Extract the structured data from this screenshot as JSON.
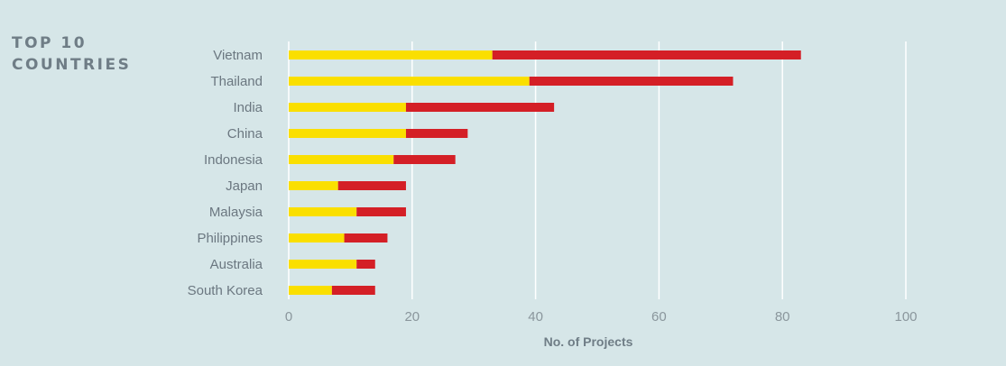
{
  "title": {
    "line1": "TOP 10",
    "line2": "COUNTRIES"
  },
  "colors": {
    "background": "#d6e6e8",
    "segment1": "#fadf00",
    "segment2": "#d41f26",
    "grid": "#ffffff"
  },
  "chart_data": {
    "type": "bar",
    "orientation": "horizontal",
    "stacked": true,
    "title": "TOP 10 COUNTRIES",
    "xlabel": "No. of Projects",
    "ylabel": "",
    "xlim": [
      0,
      100
    ],
    "xticks": [
      0,
      20,
      40,
      60,
      80,
      100
    ],
    "grid": "vertical",
    "categories": [
      "Vietnam",
      "Thailand",
      "India",
      "China",
      "Indonesia",
      "Japan",
      "Malaysia",
      "Philippines",
      "Australia",
      "South Korea"
    ],
    "series": [
      {
        "color": "#fadf00",
        "values": [
          33,
          39,
          19,
          19,
          17,
          8,
          11,
          9,
          11,
          7
        ]
      },
      {
        "color": "#d41f26",
        "values": [
          50,
          33,
          24,
          10,
          10,
          11,
          8,
          7,
          3,
          7
        ]
      }
    ]
  }
}
